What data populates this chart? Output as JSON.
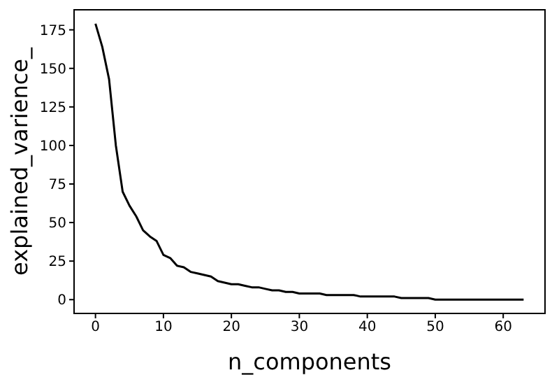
{
  "chart_data": {
    "type": "line",
    "xlabel": "n_components",
    "ylabel": "explained_varience_",
    "x": [
      0,
      1,
      2,
      3,
      4,
      5,
      6,
      7,
      8,
      9,
      10,
      11,
      12,
      13,
      14,
      15,
      16,
      17,
      18,
      19,
      20,
      21,
      22,
      23,
      24,
      25,
      26,
      27,
      28,
      29,
      30,
      31,
      32,
      33,
      34,
      35,
      36,
      37,
      38,
      39,
      40,
      41,
      42,
      43,
      44,
      45,
      46,
      47,
      48,
      49,
      50,
      51,
      52,
      53,
      54,
      55,
      56,
      57,
      58,
      59,
      60,
      61,
      62,
      63
    ],
    "series": [
      {
        "color": "#000000",
        "values": [
          179,
          164,
          143,
          100,
          70,
          61,
          54,
          45,
          41,
          38,
          29,
          27,
          22,
          21,
          18,
          17,
          16,
          15,
          12,
          11,
          10,
          10,
          9,
          8,
          8,
          7,
          6,
          6,
          5,
          5,
          4,
          4,
          4,
          4,
          3,
          3,
          3,
          3,
          3,
          2,
          2,
          2,
          2,
          2,
          2,
          1,
          1,
          1,
          1,
          1,
          0,
          0,
          0,
          0,
          0,
          0,
          0,
          0,
          0,
          0,
          0,
          0,
          0,
          0
        ]
      }
    ],
    "xlim": [
      -3.15,
      66.15
    ],
    "xticks": [
      0,
      10,
      20,
      30,
      40,
      50,
      60
    ],
    "ylim": [
      -8.95,
      188
    ],
    "yticks": [
      0,
      25,
      50,
      75,
      100,
      125,
      150,
      175
    ],
    "grid": false,
    "legend": false,
    "marker": "none",
    "line_style": "solid"
  }
}
